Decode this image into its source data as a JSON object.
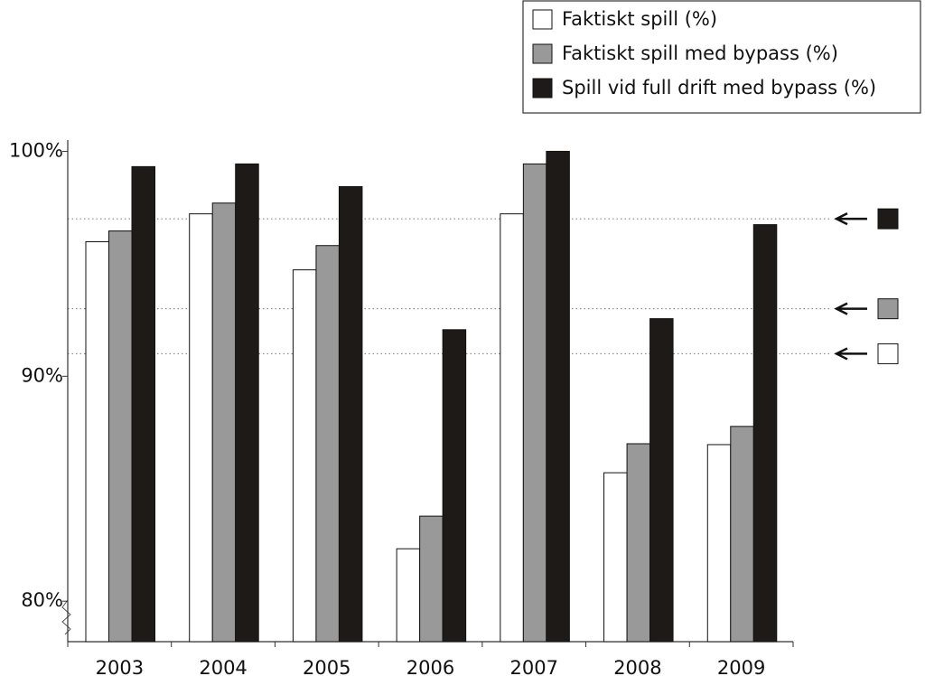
{
  "chart_data": {
    "type": "bar",
    "categories": [
      "2003",
      "2004",
      "2005",
      "2006",
      "2007",
      "2008",
      "2009"
    ],
    "series": [
      {
        "name": "Faktiskt spill (%)",
        "color": "#ffffff",
        "values": [
          95.98,
          97.22,
          94.73,
          82.33,
          97.22,
          85.71,
          86.96
        ]
      },
      {
        "name": "Faktiskt spill med bypass (%)",
        "color": "#999999",
        "values": [
          96.46,
          97.7,
          95.81,
          83.78,
          99.44,
          87.0,
          87.77
        ]
      },
      {
        "name": "Spill vid full drift med bypass (%)",
        "color": "#1e1a18",
        "values": [
          99.32,
          99.44,
          98.43,
          92.07,
          100,
          92.56,
          96.74
        ]
      }
    ],
    "reference_lines": [
      {
        "color": "#ffffff",
        "value": 91.0
      },
      {
        "color": "#999999",
        "value": 93.0
      },
      {
        "color": "#1e1a18",
        "value": 97.0
      }
    ],
    "ylim": [
      78.2,
      100.5
    ],
    "yticks": [
      {
        "value": 80,
        "label": "80%"
      },
      {
        "value": 90,
        "label": "90%"
      },
      {
        "value": 100,
        "label": "100%"
      }
    ],
    "legend": "top-right"
  }
}
